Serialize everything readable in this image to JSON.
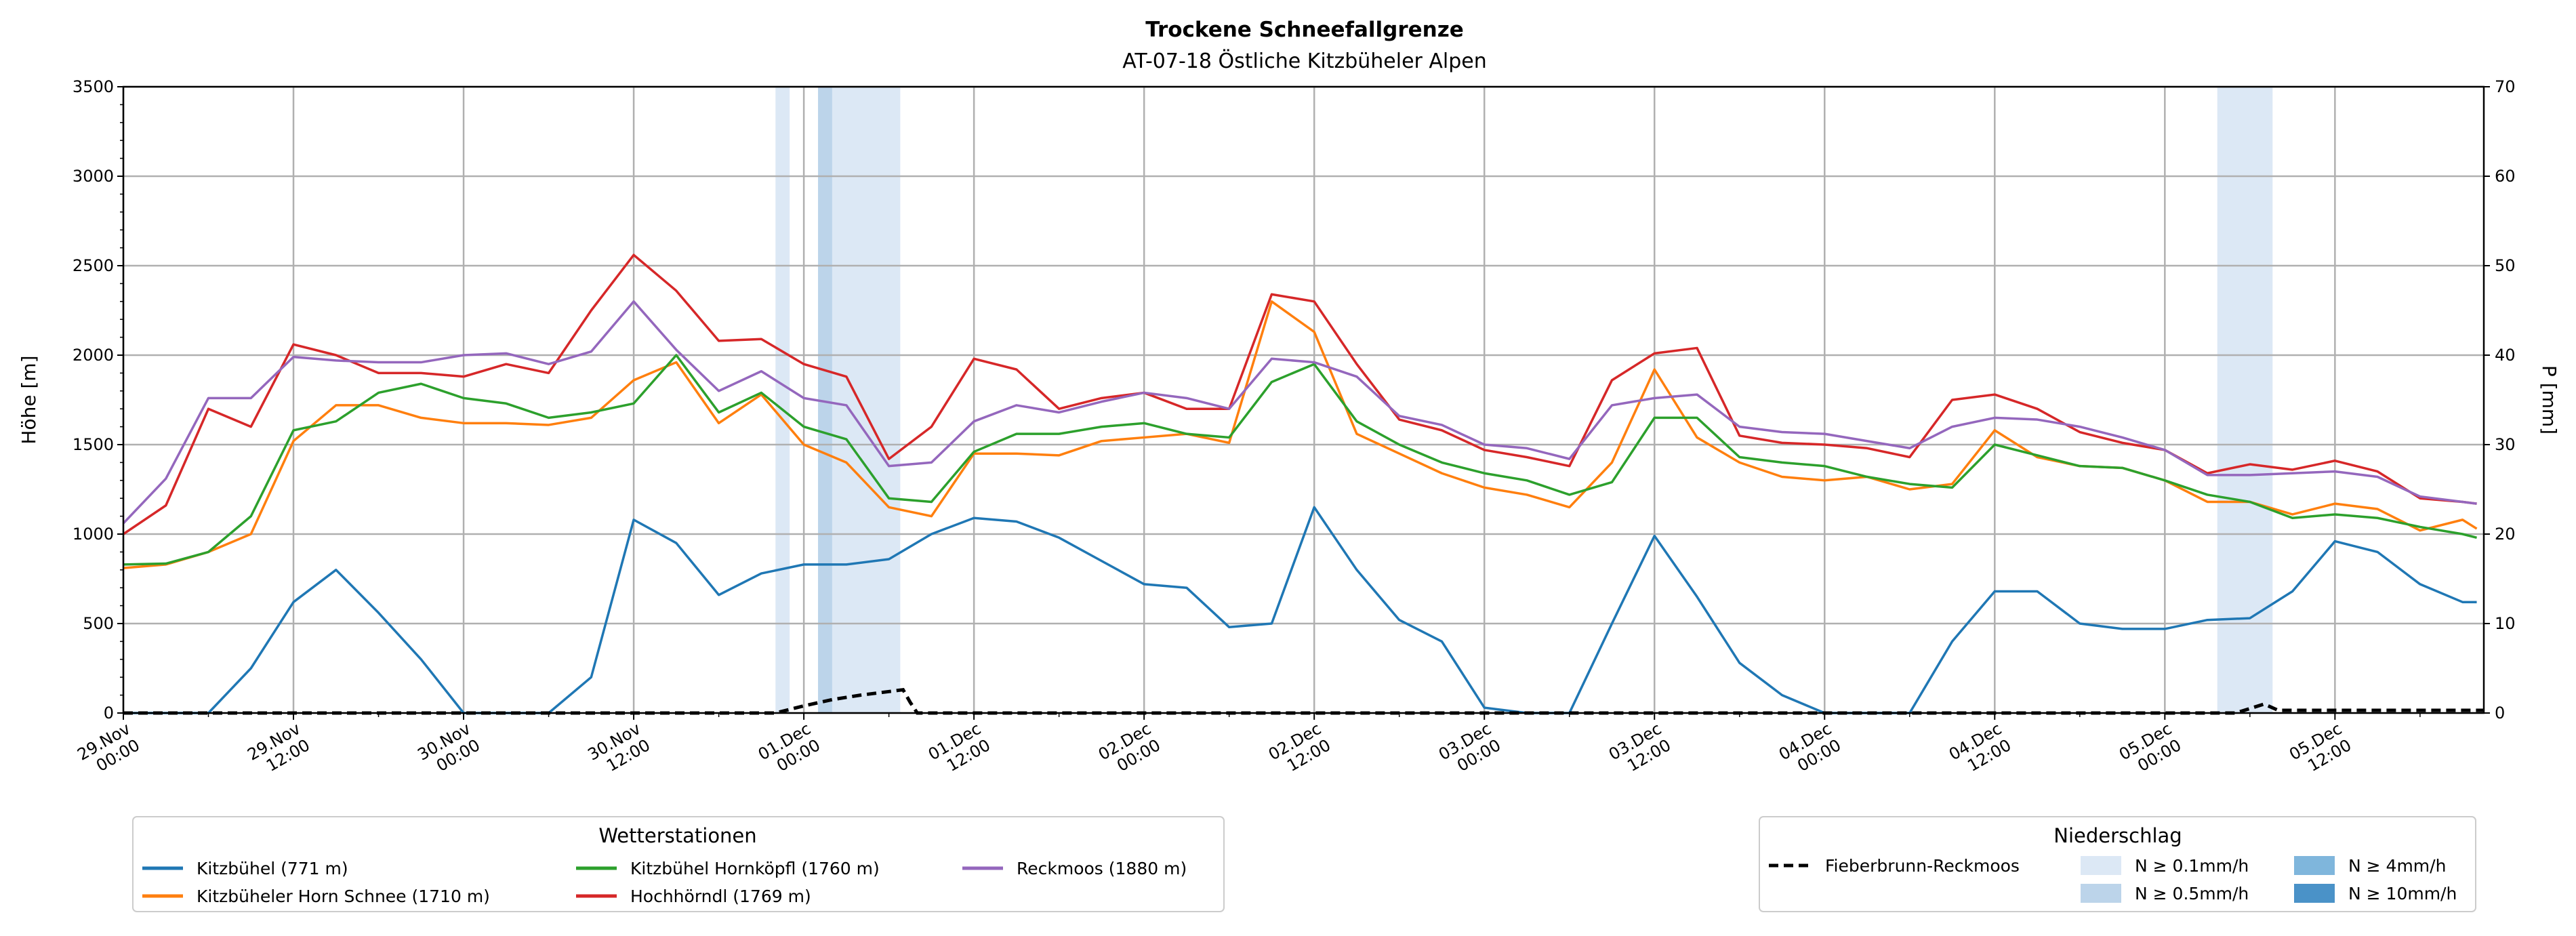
{
  "chart_data": {
    "type": "line",
    "title": "Trockene Schneefallgrenze",
    "subtitle": "AT-07-18 Östliche Kitzbüheler Alpen",
    "ylabel": "Höhe [m]",
    "ylabel_right": "P [mm]",
    "ylim": [
      0,
      3500
    ],
    "ylim_right": [
      0,
      70
    ],
    "yticks": [
      "0",
      "500",
      "1000",
      "1500",
      "2000",
      "2500",
      "3000",
      "3500"
    ],
    "yticks_right": [
      "0",
      "10",
      "20",
      "30",
      "40",
      "50",
      "60",
      "70"
    ],
    "x_unit": "hours since 29.Nov 00:00",
    "xlim": [
      0,
      166.5
    ],
    "xticks": [
      {
        "h": 0,
        "l1": "29.Nov",
        "l2": "00:00"
      },
      {
        "h": 12,
        "l1": "29.Nov",
        "l2": "12:00"
      },
      {
        "h": 24,
        "l1": "30.Nov",
        "l2": "00:00"
      },
      {
        "h": 36,
        "l1": "30.Nov",
        "l2": "12:00"
      },
      {
        "h": 48,
        "l1": "01.Dec",
        "l2": "00:00"
      },
      {
        "h": 60,
        "l1": "01.Dec",
        "l2": "12:00"
      },
      {
        "h": 72,
        "l1": "02.Dec",
        "l2": "00:00"
      },
      {
        "h": 84,
        "l1": "02.Dec",
        "l2": "12:00"
      },
      {
        "h": 96,
        "l1": "03.Dec",
        "l2": "00:00"
      },
      {
        "h": 108,
        "l1": "03.Dec",
        "l2": "12:00"
      },
      {
        "h": 120,
        "l1": "04.Dec",
        "l2": "00:00"
      },
      {
        "h": 132,
        "l1": "04.Dec",
        "l2": "12:00"
      },
      {
        "h": 144,
        "l1": "05.Dec",
        "l2": "00:00"
      },
      {
        "h": 156,
        "l1": "05.Dec",
        "l2": "12:00"
      }
    ],
    "grid": true,
    "x": [
      0,
      3,
      6,
      9,
      12,
      15,
      18,
      21,
      24,
      27,
      30,
      33,
      36,
      39,
      42,
      45,
      48,
      51,
      54,
      57,
      60,
      63,
      66,
      69,
      72,
      75,
      78,
      81,
      84,
      87,
      90,
      93,
      96,
      99,
      102,
      105,
      108,
      111,
      114,
      117,
      120,
      123,
      126,
      129,
      132,
      135,
      138,
      141,
      144,
      147,
      150,
      153,
      156,
      159,
      162,
      165,
      166
    ],
    "series": [
      {
        "name": "Kitzbühel (771 m)",
        "color": "#1f77b4",
        "values": [
          0,
          0,
          0,
          250,
          620,
          800,
          560,
          300,
          0,
          0,
          0,
          200,
          1080,
          950,
          660,
          780,
          830,
          830,
          860,
          1000,
          1090,
          1070,
          980,
          850,
          720,
          700,
          480,
          500,
          1150,
          800,
          520,
          400,
          30,
          0,
          0,
          500,
          990,
          650,
          280,
          100,
          0,
          0,
          0,
          400,
          680,
          680,
          500,
          470,
          470,
          520,
          530,
          680,
          960,
          900,
          720,
          620,
          620
        ]
      },
      {
        "name": "Kitzbüheler Horn Schnee (1710 m)",
        "color": "#ff7f0e",
        "values": [
          810,
          830,
          900,
          1000,
          1520,
          1720,
          1720,
          1650,
          1620,
          1620,
          1610,
          1650,
          1860,
          1960,
          1620,
          1780,
          1500,
          1400,
          1150,
          1100,
          1450,
          1450,
          1440,
          1520,
          1540,
          1560,
          1510,
          2300,
          2130,
          1560,
          1450,
          1340,
          1260,
          1220,
          1150,
          1400,
          1920,
          1540,
          1400,
          1320,
          1300,
          1320,
          1250,
          1280,
          1580,
          1430,
          1380,
          1370,
          1300,
          1180,
          1180,
          1110,
          1170,
          1140,
          1020,
          1080,
          1030
        ]
      },
      {
        "name": "Kitzbühel Hornköpfl (1760 m)",
        "color": "#2ca02c",
        "values": [
          830,
          835,
          900,
          1100,
          1580,
          1630,
          1790,
          1840,
          1760,
          1730,
          1650,
          1680,
          1730,
          2000,
          1680,
          1790,
          1600,
          1530,
          1200,
          1180,
          1460,
          1560,
          1560,
          1600,
          1620,
          1560,
          1540,
          1850,
          1950,
          1630,
          1500,
          1400,
          1340,
          1300,
          1220,
          1290,
          1650,
          1650,
          1430,
          1400,
          1380,
          1320,
          1280,
          1260,
          1500,
          1440,
          1380,
          1370,
          1300,
          1220,
          1180,
          1090,
          1110,
          1090,
          1040,
          1000,
          980
        ]
      },
      {
        "name": "Hochhörndl (1769 m)",
        "color": "#d62728",
        "values": [
          1000,
          1160,
          1700,
          1600,
          2060,
          2000,
          1900,
          1900,
          1880,
          1950,
          1900,
          2250,
          2560,
          2360,
          2080,
          2090,
          1950,
          1880,
          1420,
          1600,
          1980,
          1920,
          1700,
          1760,
          1790,
          1700,
          1700,
          2340,
          2300,
          1950,
          1640,
          1580,
          1470,
          1430,
          1380,
          1860,
          2010,
          2040,
          1550,
          1510,
          1500,
          1480,
          1430,
          1750,
          1780,
          1700,
          1570,
          1510,
          1470,
          1340,
          1390,
          1360,
          1410,
          1350,
          1200,
          1180,
          1170
        ]
      },
      {
        "name": "Reckmoos (1880 m)",
        "color": "#9467bd",
        "values": [
          1060,
          1310,
          1760,
          1760,
          1990,
          1970,
          1960,
          1960,
          2000,
          2010,
          1950,
          2020,
          2300,
          2030,
          1800,
          1910,
          1760,
          1720,
          1380,
          1400,
          1630,
          1720,
          1680,
          1740,
          1790,
          1760,
          1700,
          1980,
          1960,
          1880,
          1660,
          1610,
          1500,
          1480,
          1420,
          1720,
          1760,
          1780,
          1600,
          1570,
          1560,
          1520,
          1480,
          1600,
          1650,
          1640,
          1600,
          1540,
          1470,
          1330,
          1330,
          1340,
          1350,
          1320,
          1210,
          1180,
          1170
        ]
      }
    ],
    "precip_series": {
      "name": "Fieberbrunn-Reckmoos",
      "color": "#000000",
      "x": [
        0,
        46,
        48,
        50,
        52,
        55,
        55.5,
        56,
        149,
        151,
        152,
        166.5
      ],
      "values": [
        0,
        0,
        0.8,
        1.5,
        2.0,
        2.6,
        1.2,
        0,
        0,
        1,
        0.3,
        0.3
      ]
    },
    "precip_bands": [
      {
        "from": 46,
        "to": 47,
        "class": "N ≥ 0.1mm/h"
      },
      {
        "from": 49,
        "to": 50,
        "class": "N ≥ 0.5mm/h"
      },
      {
        "from": 50,
        "to": 54.8,
        "class": "N ≥ 0.1mm/h"
      },
      {
        "from": 147.7,
        "to": 151.6,
        "class": "N ≥ 0.1mm/h"
      }
    ],
    "band_colors": {
      "N ≥ 0.1mm/h": "#dce8f5",
      "N ≥ 0.5mm/h": "#bcd4ea",
      "N ≥ 4mm/h": "#7fb6dc",
      "N ≥ 10mm/h": "#4a92c8"
    },
    "legend_stations": {
      "title": "Wetterstationen",
      "placement": "bottom-left"
    },
    "legend_precip": {
      "title": "Niederschlag",
      "placement": "bottom-right",
      "line_label": "Fieberbrunn-Reckmoos",
      "classes": [
        "N ≥ 0.1mm/h",
        "N ≥ 0.5mm/h",
        "N ≥ 4mm/h",
        "N ≥ 10mm/h"
      ]
    }
  }
}
